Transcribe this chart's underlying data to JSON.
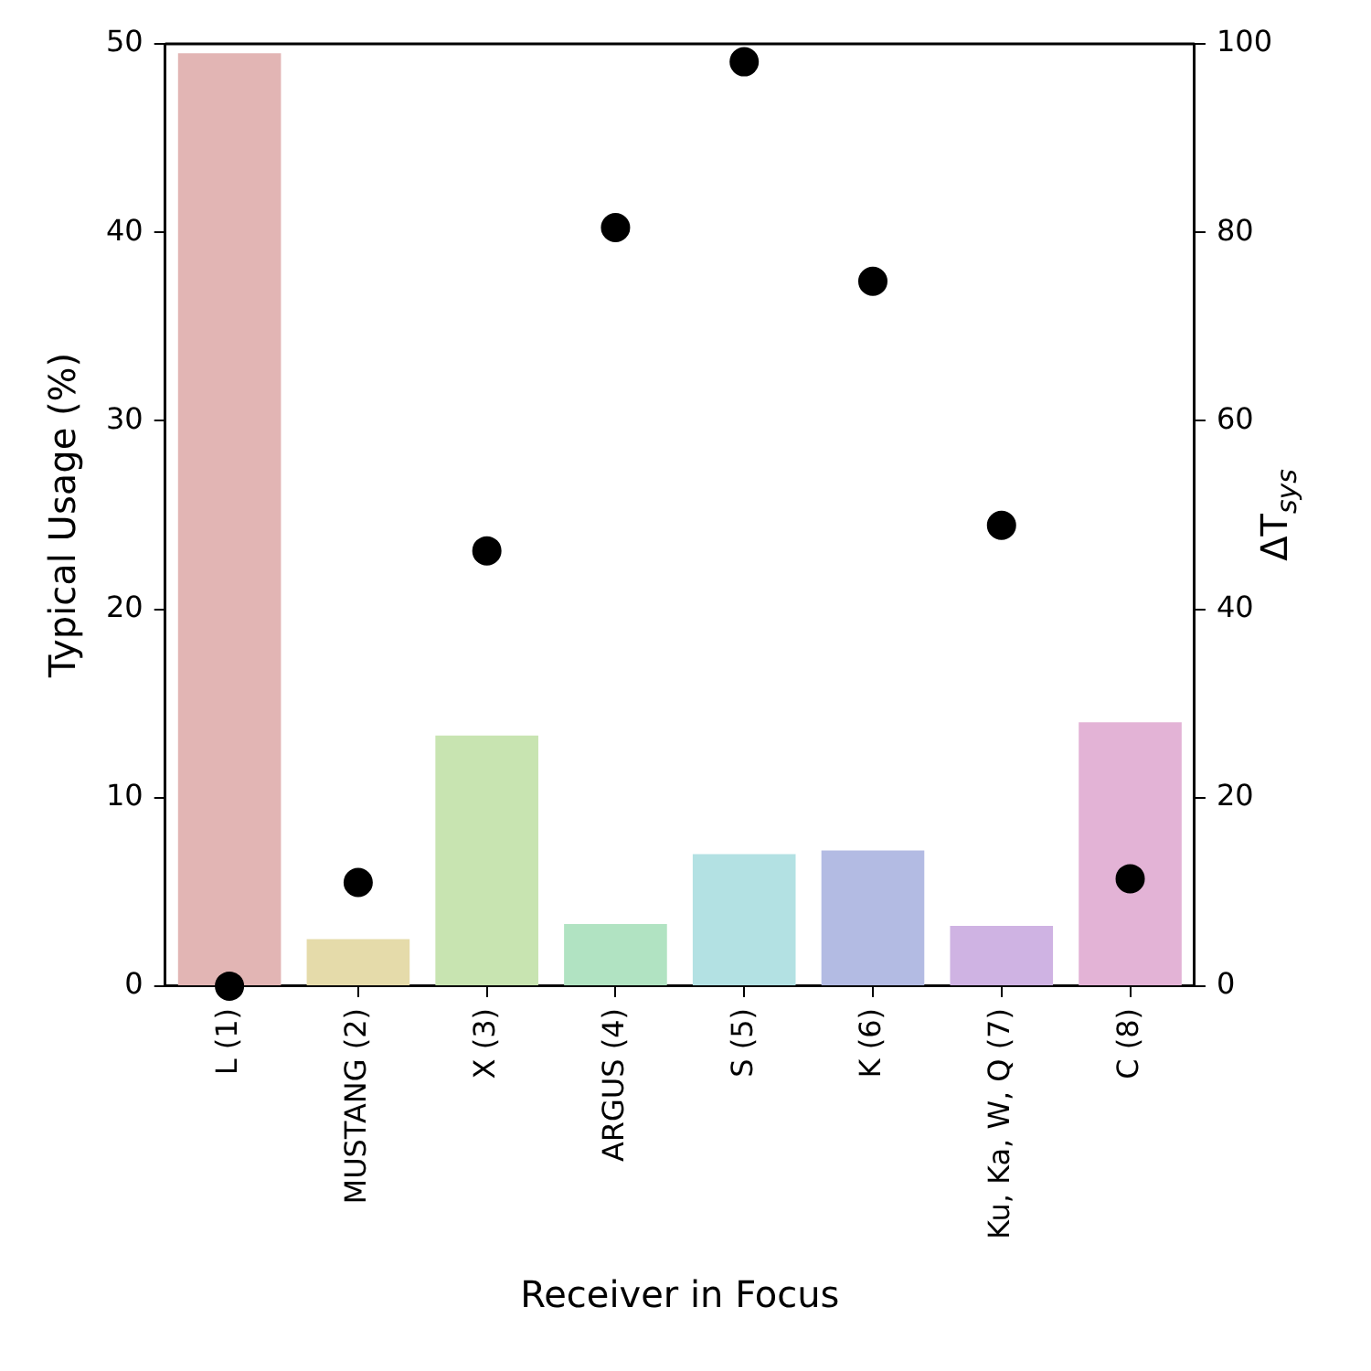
{
  "chart_data": {
    "type": "bar",
    "xlabel": "Receiver in Focus",
    "ylabel": "Typical Usage (%)",
    "y2label": "ΔT$_{sys}$",
    "categories": [
      "L (1)",
      "MUSTANG (2)",
      "X (3)",
      "ARGUS (4)",
      "S (5)",
      "K (6)",
      "Ku, Ka, W, Q (7)",
      "C (8)"
    ],
    "ylim": [
      0,
      50
    ],
    "yticks": [
      0,
      10,
      20,
      30,
      40,
      50
    ],
    "y2lim": [
      0,
      100
    ],
    "y2ticks": [
      0,
      20,
      40,
      60,
      80,
      100
    ],
    "grid": false,
    "legend": false,
    "series": [
      {
        "colors": [
          "#e2b5b4",
          "#e5dbaa",
          "#c8e4b1",
          "#b1e3c2",
          "#b3e1e3",
          "#b3bbe3",
          "#cfb3e3",
          "#e3b3d6"
        ],
        "values": [
          49.5,
          2.5,
          13.3,
          3.3,
          7.0,
          7.2,
          3.2,
          14.0
        ]
      },
      {
        "type": "scatter",
        "axis": "y2",
        "color": "#000000",
        "marker": "circle",
        "values": [
          0,
          11.0,
          46.2,
          80.5,
          98.1,
          74.8,
          48.9,
          11.4
        ]
      }
    ]
  }
}
